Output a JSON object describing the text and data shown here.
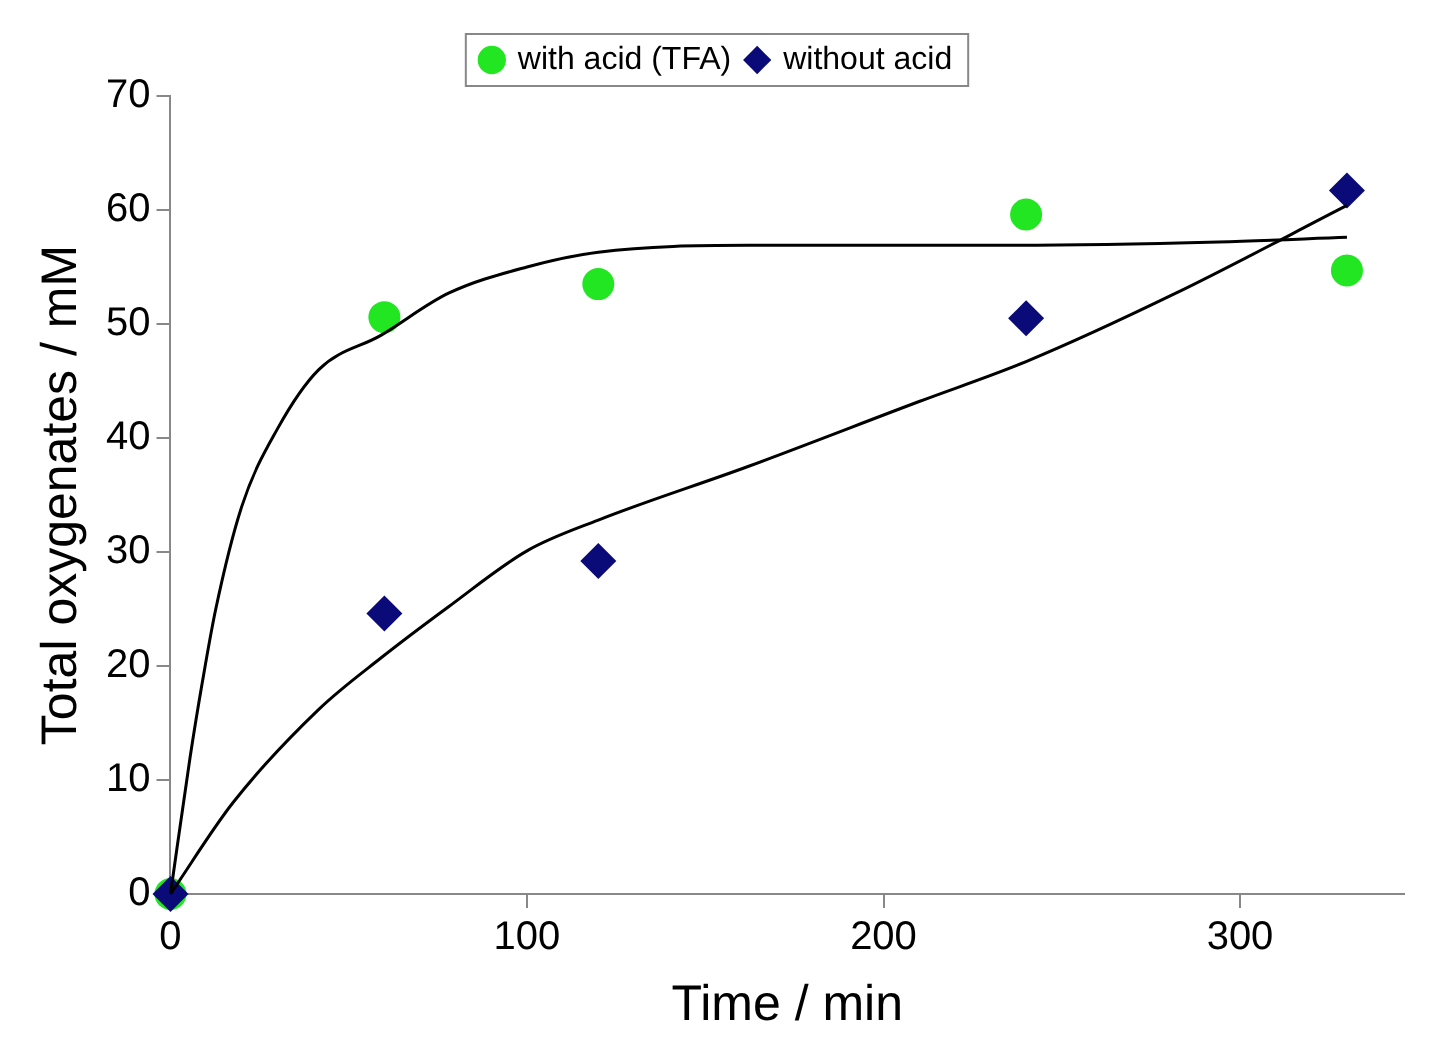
{
  "chart_data": {
    "type": "scatter",
    "xlabel": "Time / min",
    "ylabel": "Total oxygenates / mM",
    "xlim": [
      0,
      346
    ],
    "xticks": [
      0,
      100,
      200,
      300
    ],
    "ylim": [
      0,
      70
    ],
    "yticks": [
      0,
      10,
      20,
      30,
      40,
      50,
      60,
      70
    ],
    "grid": false,
    "legend": "top",
    "x": [
      0,
      60,
      120,
      240,
      330
    ],
    "series": [
      {
        "name": "with acid (TFA)",
        "color": "#22e622",
        "marker": "circle",
        "values": [
          0,
          50.6,
          53.5,
          59.6,
          54.7
        ]
      },
      {
        "name": "without acid",
        "color": "#0a0a78",
        "marker": "diamond",
        "values": [
          0,
          24.6,
          29.2,
          50.5,
          61.7
        ]
      },
      {
        "type": "line",
        "color": "#000000",
        "marker": "none",
        "x": [
          0,
          5.5,
          9,
          12.7,
          20,
          30,
          41.6,
          59,
          78,
          100,
          120,
          162,
          234,
          294,
          330
        ],
        "values": [
          0,
          12,
          18.7,
          25,
          34,
          40.8,
          46,
          49,
          52.7,
          55,
          56.3,
          56.9,
          56.9,
          57.2,
          57.6
        ]
      },
      {
        "type": "line",
        "color": "#000000",
        "marker": "none",
        "x": [
          0,
          17.5,
          41.6,
          59,
          78,
          100,
          120,
          162,
          210,
          240,
          282,
          330
        ],
        "values": [
          0,
          8,
          16.2,
          20.7,
          25.2,
          30.1,
          32.8,
          37.5,
          43.2,
          46.7,
          52.7,
          60.4
        ]
      }
    ]
  }
}
